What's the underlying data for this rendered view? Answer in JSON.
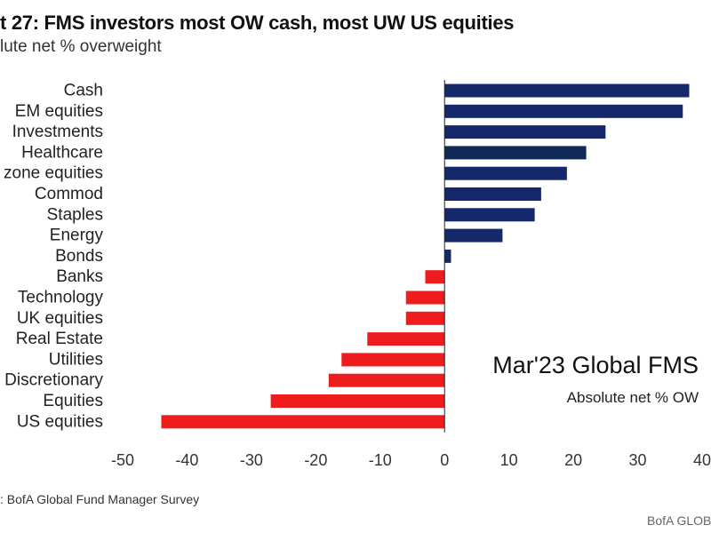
{
  "chart_data": {
    "type": "bar",
    "orientation": "horizontal",
    "title": "t 27: FMS investors most OW cash, most UW US equities",
    "subtitle": "lute net % overweight",
    "categories": [
      "Cash",
      "EM equities",
      "Investments",
      "Healthcare",
      "zone equities",
      "Commod",
      "Staples",
      "Energy",
      "Bonds",
      "Banks",
      "Technology",
      "UK equities",
      "Real Estate",
      "Utilities",
      "Discretionary",
      "Equities",
      "US equities"
    ],
    "values": [
      38,
      37,
      25,
      22,
      19,
      15,
      14,
      9,
      1,
      -3,
      -6,
      -6,
      -12,
      -16,
      -18,
      -27,
      -44
    ],
    "xlim": [
      -50,
      40
    ],
    "xticks": [
      "-50",
      "-40",
      "-30",
      "-20",
      "-10",
      "0",
      "10",
      "20",
      "30",
      "40"
    ],
    "grid": false,
    "colors": {
      "positive": "#14286b",
      "positive_alt": "#0f2a55",
      "negative": "#ee1c1c",
      "axis": "#222222"
    },
    "annotation": {
      "title": "Mar'23 Global FMS",
      "subtitle": "Absolute net % OW"
    },
    "source": ": BofA Global Fund Manager Survey",
    "brand": "BofA GLOB"
  }
}
